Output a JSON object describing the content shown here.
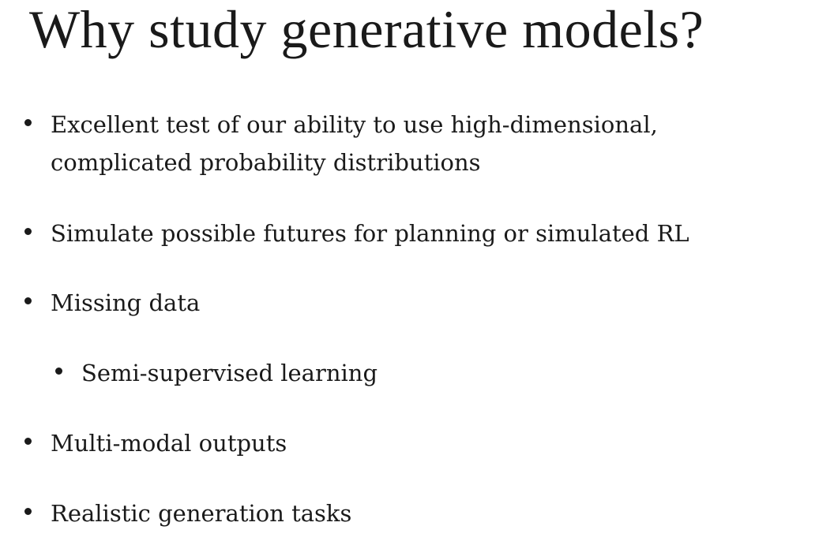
{
  "slide": {
    "title": "Why study generative models?",
    "bullets": [
      {
        "line1": "Excellent test of our ability to use high-dimensional,",
        "line2": "complicated probability distributions"
      },
      {
        "text": "Simulate possible futures for planning or simulated RL"
      },
      {
        "text": "Missing data"
      },
      {
        "text": "Semi-supervised learning"
      },
      {
        "text": "Multi-modal outputs"
      },
      {
        "text": "Realistic generation tasks"
      }
    ]
  }
}
